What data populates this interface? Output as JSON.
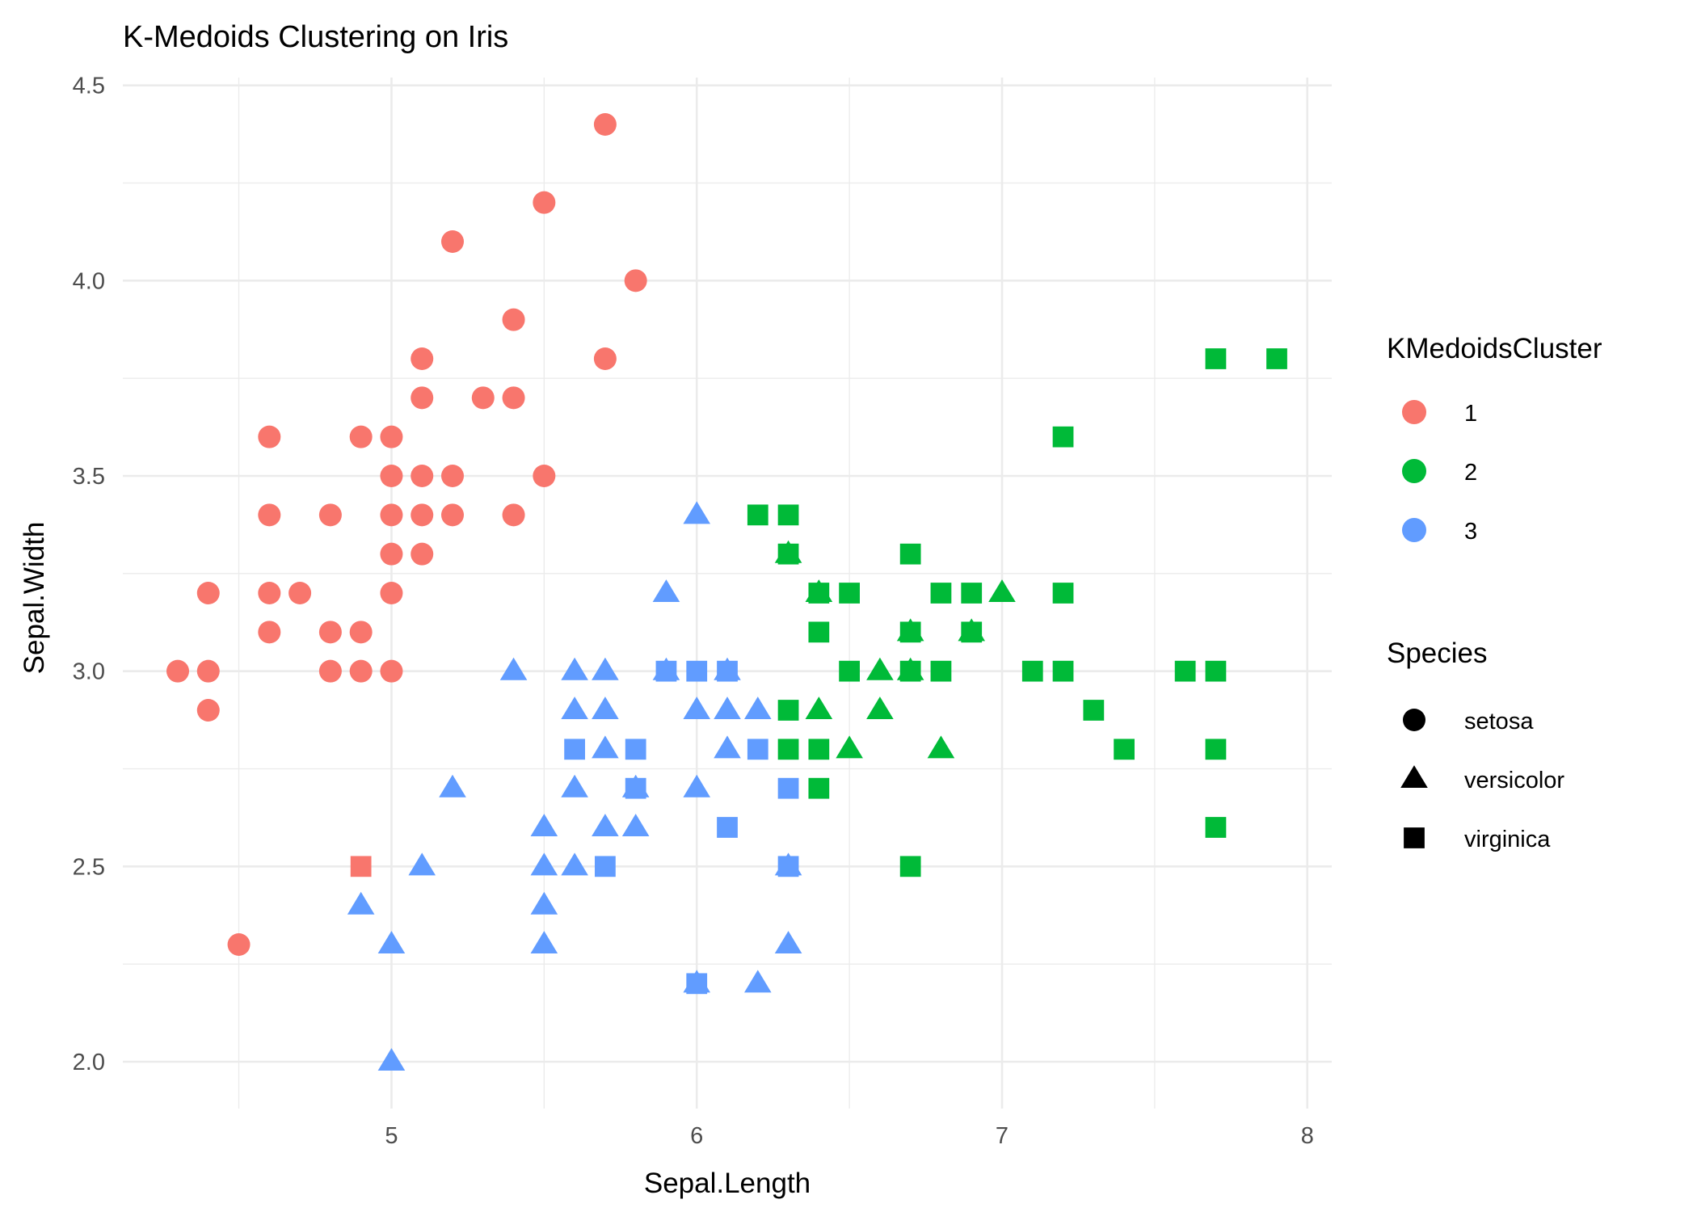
{
  "chart_data": {
    "type": "scatter",
    "title": "K-Medoids Clustering on Iris",
    "xlabel": "Sepal.Length",
    "ylabel": "Sepal.Width",
    "xlim": [
      4.12,
      8.08
    ],
    "ylim": [
      1.88,
      4.52
    ],
    "x_ticks": [
      5,
      6,
      7,
      8
    ],
    "y_ticks": [
      2.0,
      2.5,
      3.0,
      3.5,
      4.0,
      4.5
    ],
    "grid": true,
    "legend_position": "right",
    "legends": [
      {
        "title": "KMedoidsCluster",
        "kind": "color",
        "entries": [
          {
            "label": "1",
            "color": "#F8766D"
          },
          {
            "label": "2",
            "color": "#00BA38"
          },
          {
            "label": "3",
            "color": "#619CFF"
          }
        ]
      },
      {
        "title": "Species",
        "kind": "shape",
        "entries": [
          {
            "label": "setosa",
            "shape": "circle"
          },
          {
            "label": "versicolor",
            "shape": "triangle"
          },
          {
            "label": "virginica",
            "shape": "square"
          }
        ]
      }
    ],
    "points": [
      {
        "x": 4.3,
        "y": 3.0,
        "cluster": "1",
        "species": "setosa"
      },
      {
        "x": 4.4,
        "y": 3.2,
        "cluster": "1",
        "species": "setosa"
      },
      {
        "x": 4.4,
        "y": 3.0,
        "cluster": "1",
        "species": "setosa"
      },
      {
        "x": 4.4,
        "y": 2.9,
        "cluster": "1",
        "species": "setosa"
      },
      {
        "x": 4.5,
        "y": 2.3,
        "cluster": "1",
        "species": "setosa"
      },
      {
        "x": 4.6,
        "y": 3.6,
        "cluster": "1",
        "species": "setosa"
      },
      {
        "x": 4.6,
        "y": 3.4,
        "cluster": "1",
        "species": "setosa"
      },
      {
        "x": 4.6,
        "y": 3.2,
        "cluster": "1",
        "species": "setosa"
      },
      {
        "x": 4.6,
        "y": 3.1,
        "cluster": "1",
        "species": "setosa"
      },
      {
        "x": 4.7,
        "y": 3.2,
        "cluster": "1",
        "species": "setosa"
      },
      {
        "x": 4.8,
        "y": 3.4,
        "cluster": "1",
        "species": "setosa"
      },
      {
        "x": 4.8,
        "y": 3.1,
        "cluster": "1",
        "species": "setosa"
      },
      {
        "x": 4.8,
        "y": 3.0,
        "cluster": "1",
        "species": "setosa"
      },
      {
        "x": 4.9,
        "y": 3.6,
        "cluster": "1",
        "species": "setosa"
      },
      {
        "x": 4.9,
        "y": 3.1,
        "cluster": "1",
        "species": "setosa"
      },
      {
        "x": 4.9,
        "y": 3.0,
        "cluster": "1",
        "species": "setosa"
      },
      {
        "x": 5.0,
        "y": 3.6,
        "cluster": "1",
        "species": "setosa"
      },
      {
        "x": 5.0,
        "y": 3.5,
        "cluster": "1",
        "species": "setosa"
      },
      {
        "x": 5.0,
        "y": 3.4,
        "cluster": "1",
        "species": "setosa"
      },
      {
        "x": 5.0,
        "y": 3.3,
        "cluster": "1",
        "species": "setosa"
      },
      {
        "x": 5.0,
        "y": 3.2,
        "cluster": "1",
        "species": "setosa"
      },
      {
        "x": 5.0,
        "y": 3.0,
        "cluster": "1",
        "species": "setosa"
      },
      {
        "x": 5.1,
        "y": 3.8,
        "cluster": "1",
        "species": "setosa"
      },
      {
        "x": 5.1,
        "y": 3.7,
        "cluster": "1",
        "species": "setosa"
      },
      {
        "x": 5.1,
        "y": 3.5,
        "cluster": "1",
        "species": "setosa"
      },
      {
        "x": 5.1,
        "y": 3.4,
        "cluster": "1",
        "species": "setosa"
      },
      {
        "x": 5.1,
        "y": 3.3,
        "cluster": "1",
        "species": "setosa"
      },
      {
        "x": 5.2,
        "y": 4.1,
        "cluster": "1",
        "species": "setosa"
      },
      {
        "x": 5.2,
        "y": 3.5,
        "cluster": "1",
        "species": "setosa"
      },
      {
        "x": 5.2,
        "y": 3.4,
        "cluster": "1",
        "species": "setosa"
      },
      {
        "x": 5.3,
        "y": 3.7,
        "cluster": "1",
        "species": "setosa"
      },
      {
        "x": 5.4,
        "y": 3.9,
        "cluster": "1",
        "species": "setosa"
      },
      {
        "x": 5.4,
        "y": 3.7,
        "cluster": "1",
        "species": "setosa"
      },
      {
        "x": 5.4,
        "y": 3.4,
        "cluster": "1",
        "species": "setosa"
      },
      {
        "x": 5.5,
        "y": 4.2,
        "cluster": "1",
        "species": "setosa"
      },
      {
        "x": 5.5,
        "y": 3.5,
        "cluster": "1",
        "species": "setosa"
      },
      {
        "x": 5.7,
        "y": 4.4,
        "cluster": "1",
        "species": "setosa"
      },
      {
        "x": 5.7,
        "y": 3.8,
        "cluster": "1",
        "species": "setosa"
      },
      {
        "x": 5.8,
        "y": 4.0,
        "cluster": "1",
        "species": "setosa"
      },
      {
        "x": 4.9,
        "y": 2.5,
        "cluster": "1",
        "species": "virginica"
      },
      {
        "x": 6.3,
        "y": 3.3,
        "cluster": "2",
        "species": "versicolor"
      },
      {
        "x": 6.4,
        "y": 3.2,
        "cluster": "2",
        "species": "versicolor"
      },
      {
        "x": 6.4,
        "y": 2.9,
        "cluster": "2",
        "species": "versicolor"
      },
      {
        "x": 6.5,
        "y": 2.8,
        "cluster": "2",
        "species": "versicolor"
      },
      {
        "x": 6.6,
        "y": 3.0,
        "cluster": "2",
        "species": "versicolor"
      },
      {
        "x": 6.6,
        "y": 2.9,
        "cluster": "2",
        "species": "versicolor"
      },
      {
        "x": 6.7,
        "y": 3.1,
        "cluster": "2",
        "species": "versicolor"
      },
      {
        "x": 6.7,
        "y": 3.0,
        "cluster": "2",
        "species": "versicolor"
      },
      {
        "x": 6.8,
        "y": 2.8,
        "cluster": "2",
        "species": "versicolor"
      },
      {
        "x": 6.9,
        "y": 3.1,
        "cluster": "2",
        "species": "versicolor"
      },
      {
        "x": 7.0,
        "y": 3.2,
        "cluster": "2",
        "species": "versicolor"
      },
      {
        "x": 6.2,
        "y": 3.4,
        "cluster": "2",
        "species": "virginica"
      },
      {
        "x": 6.3,
        "y": 3.4,
        "cluster": "2",
        "species": "virginica"
      },
      {
        "x": 6.3,
        "y": 3.3,
        "cluster": "2",
        "species": "virginica"
      },
      {
        "x": 6.3,
        "y": 2.9,
        "cluster": "2",
        "species": "virginica"
      },
      {
        "x": 6.3,
        "y": 2.8,
        "cluster": "2",
        "species": "virginica"
      },
      {
        "x": 6.4,
        "y": 3.2,
        "cluster": "2",
        "species": "virginica"
      },
      {
        "x": 6.4,
        "y": 3.1,
        "cluster": "2",
        "species": "virginica"
      },
      {
        "x": 6.4,
        "y": 2.8,
        "cluster": "2",
        "species": "virginica"
      },
      {
        "x": 6.4,
        "y": 2.7,
        "cluster": "2",
        "species": "virginica"
      },
      {
        "x": 6.5,
        "y": 3.2,
        "cluster": "2",
        "species": "virginica"
      },
      {
        "x": 6.5,
        "y": 3.0,
        "cluster": "2",
        "species": "virginica"
      },
      {
        "x": 6.7,
        "y": 3.3,
        "cluster": "2",
        "species": "virginica"
      },
      {
        "x": 6.7,
        "y": 3.1,
        "cluster": "2",
        "species": "virginica"
      },
      {
        "x": 6.7,
        "y": 3.0,
        "cluster": "2",
        "species": "virginica"
      },
      {
        "x": 6.7,
        "y": 2.5,
        "cluster": "2",
        "species": "virginica"
      },
      {
        "x": 6.8,
        "y": 3.2,
        "cluster": "2",
        "species": "virginica"
      },
      {
        "x": 6.8,
        "y": 3.0,
        "cluster": "2",
        "species": "virginica"
      },
      {
        "x": 6.9,
        "y": 3.2,
        "cluster": "2",
        "species": "virginica"
      },
      {
        "x": 6.9,
        "y": 3.1,
        "cluster": "2",
        "species": "virginica"
      },
      {
        "x": 7.1,
        "y": 3.0,
        "cluster": "2",
        "species": "virginica"
      },
      {
        "x": 7.2,
        "y": 3.6,
        "cluster": "2",
        "species": "virginica"
      },
      {
        "x": 7.2,
        "y": 3.2,
        "cluster": "2",
        "species": "virginica"
      },
      {
        "x": 7.2,
        "y": 3.0,
        "cluster": "2",
        "species": "virginica"
      },
      {
        "x": 7.3,
        "y": 2.9,
        "cluster": "2",
        "species": "virginica"
      },
      {
        "x": 7.4,
        "y": 2.8,
        "cluster": "2",
        "species": "virginica"
      },
      {
        "x": 7.6,
        "y": 3.0,
        "cluster": "2",
        "species": "virginica"
      },
      {
        "x": 7.7,
        "y": 3.8,
        "cluster": "2",
        "species": "virginica"
      },
      {
        "x": 7.7,
        "y": 3.0,
        "cluster": "2",
        "species": "virginica"
      },
      {
        "x": 7.7,
        "y": 2.8,
        "cluster": "2",
        "species": "virginica"
      },
      {
        "x": 7.7,
        "y": 2.6,
        "cluster": "2",
        "species": "virginica"
      },
      {
        "x": 7.9,
        "y": 3.8,
        "cluster": "2",
        "species": "virginica"
      },
      {
        "x": 4.9,
        "y": 2.4,
        "cluster": "3",
        "species": "versicolor"
      },
      {
        "x": 5.0,
        "y": 2.3,
        "cluster": "3",
        "species": "versicolor"
      },
      {
        "x": 5.0,
        "y": 2.0,
        "cluster": "3",
        "species": "versicolor"
      },
      {
        "x": 5.1,
        "y": 2.5,
        "cluster": "3",
        "species": "versicolor"
      },
      {
        "x": 5.2,
        "y": 2.7,
        "cluster": "3",
        "species": "versicolor"
      },
      {
        "x": 5.4,
        "y": 3.0,
        "cluster": "3",
        "species": "versicolor"
      },
      {
        "x": 5.5,
        "y": 2.6,
        "cluster": "3",
        "species": "versicolor"
      },
      {
        "x": 5.5,
        "y": 2.5,
        "cluster": "3",
        "species": "versicolor"
      },
      {
        "x": 5.5,
        "y": 2.4,
        "cluster": "3",
        "species": "versicolor"
      },
      {
        "x": 5.5,
        "y": 2.3,
        "cluster": "3",
        "species": "versicolor"
      },
      {
        "x": 5.6,
        "y": 3.0,
        "cluster": "3",
        "species": "versicolor"
      },
      {
        "x": 5.6,
        "y": 2.9,
        "cluster": "3",
        "species": "versicolor"
      },
      {
        "x": 5.6,
        "y": 2.7,
        "cluster": "3",
        "species": "versicolor"
      },
      {
        "x": 5.6,
        "y": 2.5,
        "cluster": "3",
        "species": "versicolor"
      },
      {
        "x": 5.7,
        "y": 3.0,
        "cluster": "3",
        "species": "versicolor"
      },
      {
        "x": 5.7,
        "y": 2.9,
        "cluster": "3",
        "species": "versicolor"
      },
      {
        "x": 5.7,
        "y": 2.8,
        "cluster": "3",
        "species": "versicolor"
      },
      {
        "x": 5.7,
        "y": 2.6,
        "cluster": "3",
        "species": "versicolor"
      },
      {
        "x": 5.8,
        "y": 2.7,
        "cluster": "3",
        "species": "versicolor"
      },
      {
        "x": 5.8,
        "y": 2.6,
        "cluster": "3",
        "species": "versicolor"
      },
      {
        "x": 5.9,
        "y": 3.2,
        "cluster": "3",
        "species": "versicolor"
      },
      {
        "x": 5.9,
        "y": 3.0,
        "cluster": "3",
        "species": "versicolor"
      },
      {
        "x": 6.0,
        "y": 3.4,
        "cluster": "3",
        "species": "versicolor"
      },
      {
        "x": 6.0,
        "y": 2.9,
        "cluster": "3",
        "species": "versicolor"
      },
      {
        "x": 6.0,
        "y": 2.7,
        "cluster": "3",
        "species": "versicolor"
      },
      {
        "x": 6.0,
        "y": 2.2,
        "cluster": "3",
        "species": "versicolor"
      },
      {
        "x": 6.1,
        "y": 3.0,
        "cluster": "3",
        "species": "versicolor"
      },
      {
        "x": 6.1,
        "y": 2.9,
        "cluster": "3",
        "species": "versicolor"
      },
      {
        "x": 6.1,
        "y": 2.8,
        "cluster": "3",
        "species": "versicolor"
      },
      {
        "x": 6.2,
        "y": 2.9,
        "cluster": "3",
        "species": "versicolor"
      },
      {
        "x": 6.2,
        "y": 2.2,
        "cluster": "3",
        "species": "versicolor"
      },
      {
        "x": 6.3,
        "y": 2.5,
        "cluster": "3",
        "species": "versicolor"
      },
      {
        "x": 6.3,
        "y": 2.3,
        "cluster": "3",
        "species": "versicolor"
      },
      {
        "x": 5.6,
        "y": 2.8,
        "cluster": "3",
        "species": "virginica"
      },
      {
        "x": 5.7,
        "y": 2.5,
        "cluster": "3",
        "species": "virginica"
      },
      {
        "x": 5.8,
        "y": 2.8,
        "cluster": "3",
        "species": "virginica"
      },
      {
        "x": 5.8,
        "y": 2.7,
        "cluster": "3",
        "species": "virginica"
      },
      {
        "x": 5.9,
        "y": 3.0,
        "cluster": "3",
        "species": "virginica"
      },
      {
        "x": 6.0,
        "y": 3.0,
        "cluster": "3",
        "species": "virginica"
      },
      {
        "x": 6.0,
        "y": 2.2,
        "cluster": "3",
        "species": "virginica"
      },
      {
        "x": 6.1,
        "y": 3.0,
        "cluster": "3",
        "species": "virginica"
      },
      {
        "x": 6.1,
        "y": 2.6,
        "cluster": "3",
        "species": "virginica"
      },
      {
        "x": 6.2,
        "y": 2.8,
        "cluster": "3",
        "species": "virginica"
      },
      {
        "x": 6.3,
        "y": 2.7,
        "cluster": "3",
        "species": "virginica"
      },
      {
        "x": 6.3,
        "y": 2.5,
        "cluster": "3",
        "species": "virginica"
      }
    ]
  }
}
